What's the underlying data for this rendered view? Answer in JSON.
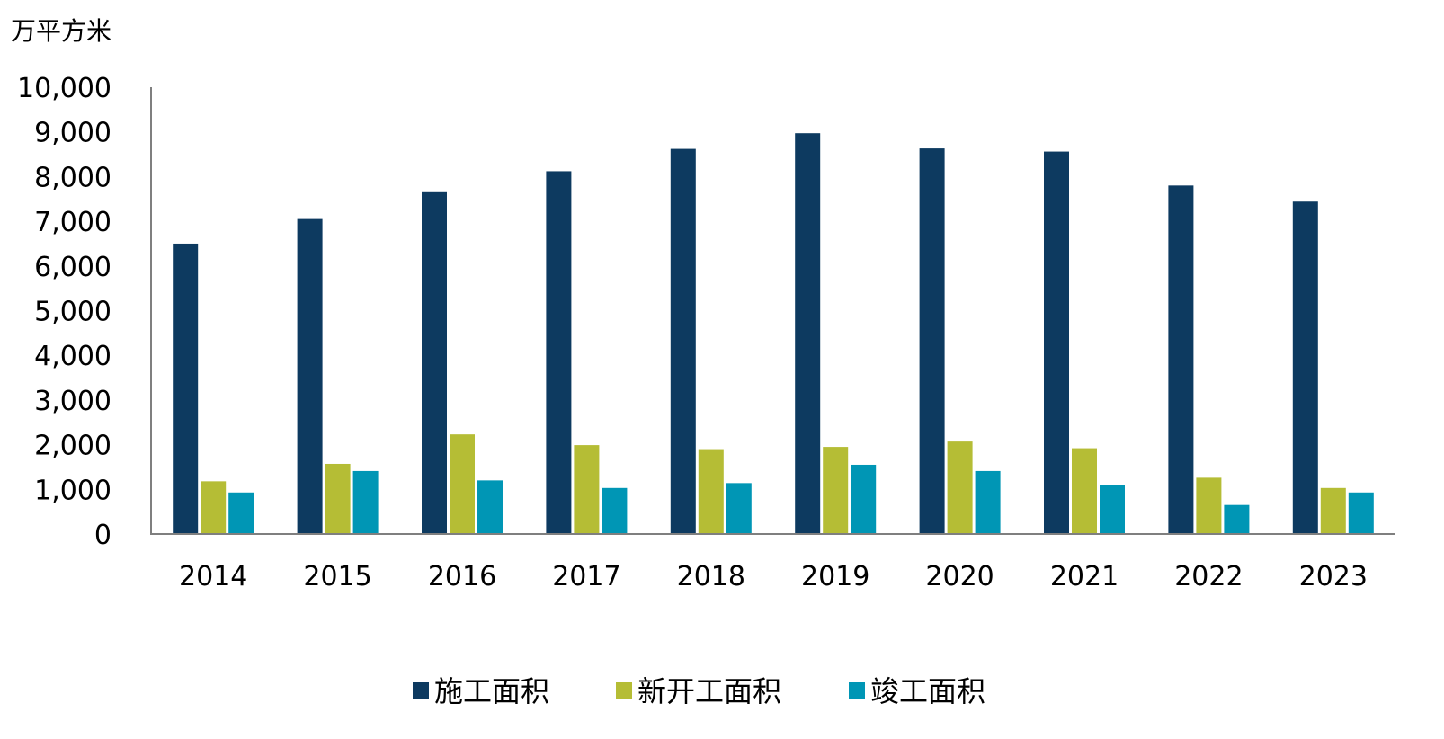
{
  "chart_data": {
    "type": "bar",
    "unit_label": "万平方米",
    "categories": [
      "2014",
      "2015",
      "2016",
      "2017",
      "2018",
      "2019",
      "2020",
      "2021",
      "2022",
      "2023"
    ],
    "series": [
      {
        "name": "施工面积",
        "color": "#0d3a60",
        "values": [
          6500,
          7050,
          7650,
          8120,
          8620,
          8970,
          8630,
          8560,
          7800,
          7440
        ]
      },
      {
        "name": "新开工面积",
        "color": "#b5bd35",
        "values": [
          1180,
          1570,
          2230,
          1990,
          1900,
          1950,
          2070,
          1920,
          1260,
          1030
        ]
      },
      {
        "name": "竣工面积",
        "color": "#0096b5",
        "values": [
          930,
          1410,
          1200,
          1030,
          1140,
          1550,
          1410,
          1090,
          650,
          930
        ]
      }
    ],
    "ylim": [
      0,
      10000
    ],
    "yticks": [
      "0",
      "1,000",
      "2,000",
      "3,000",
      "4,000",
      "5,000",
      "6,000",
      "7,000",
      "8,000",
      "9,000",
      "10,000"
    ],
    "grid": false,
    "legend_position": "bottom-center"
  }
}
